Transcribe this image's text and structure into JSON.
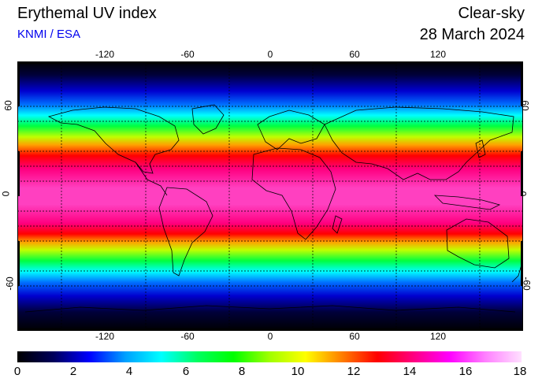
{
  "header": {
    "title": "Erythemal UV index",
    "subtitle": "KNMI / ESA",
    "sky_condition": "Clear-sky",
    "date": "28 March 2024"
  },
  "map": {
    "projection": "equirectangular",
    "lon_range": [
      -180,
      180
    ],
    "lat_range": [
      -90,
      90
    ],
    "lon_ticks": [
      "-120",
      "-60",
      "0",
      "60",
      "120"
    ],
    "lat_ticks": [
      "60",
      "0",
      "-60"
    ],
    "gridlines": "dashed every 20 degrees",
    "peak_uv_band": "tropics around the equator (about 15-17)",
    "polar_uv": "near 0 at high latitudes"
  },
  "colorbar": {
    "min": 0,
    "max": 18,
    "tick_labels": [
      "0",
      "2",
      "4",
      "6",
      "8",
      "10",
      "12",
      "14",
      "16",
      "18"
    ],
    "colors": [
      "#000000",
      "#00005a",
      "#0000ff",
      "#00a0ff",
      "#00ffff",
      "#00ff60",
      "#00ff00",
      "#a0ff00",
      "#ffff00",
      "#ff8000",
      "#ff0000",
      "#ff0080",
      "#ff00ff",
      "#ff80ff",
      "#ffe0ff"
    ]
  },
  "colors": {
    "subtitle": "#0000ee",
    "coastline": "#000000"
  }
}
